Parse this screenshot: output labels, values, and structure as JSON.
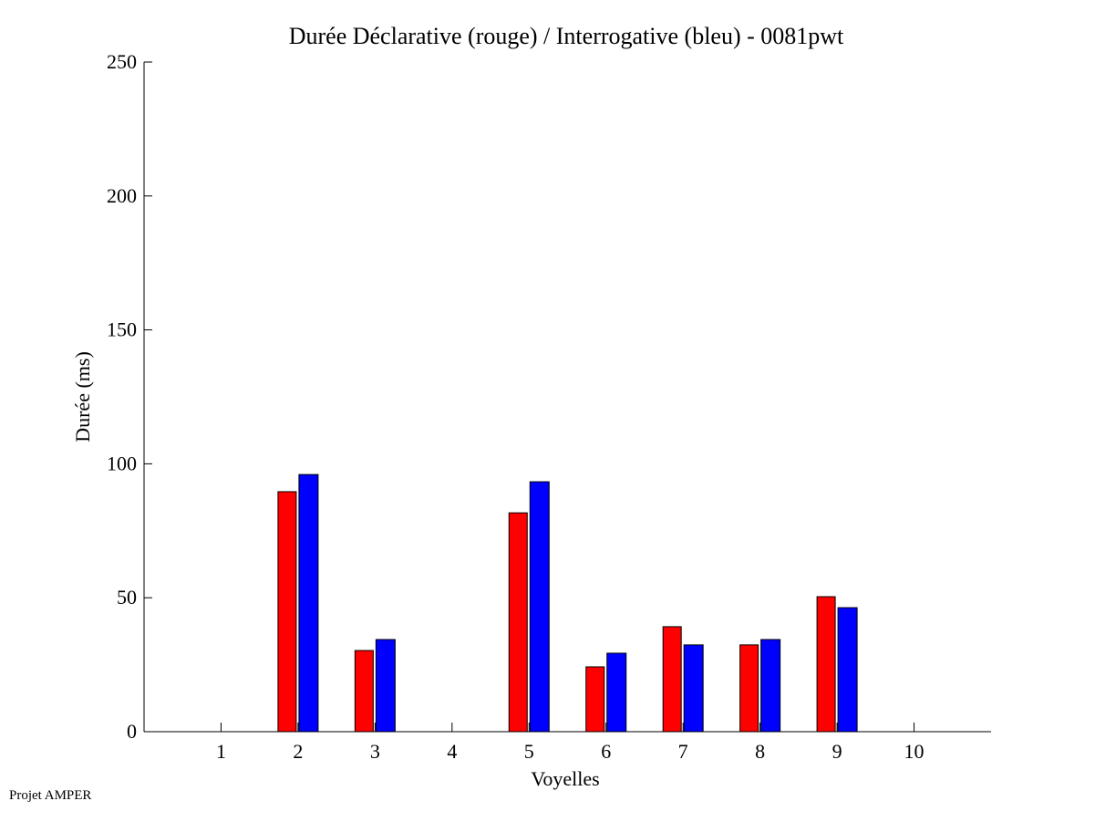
{
  "chart_data": {
    "type": "bar",
    "title": "Durée Déclarative (rouge) / Interrogative (bleu) - 0081pwt",
    "xlabel": "Voyelles",
    "ylabel": "Durée (ms)",
    "categories": [
      1,
      2,
      3,
      4,
      5,
      6,
      7,
      8,
      9,
      10
    ],
    "xlim": [
      0,
      11
    ],
    "ylim": [
      0,
      250
    ],
    "yticks": [
      0,
      50,
      100,
      150,
      200,
      250
    ],
    "grid": false,
    "series": [
      {
        "name": "Déclarative",
        "color": "#ff0000",
        "values": [
          0,
          89.6,
          30.3,
          0,
          81.7,
          24.2,
          39.2,
          32.4,
          50.4,
          0
        ]
      },
      {
        "name": "Interrogative",
        "color": "#0000ff",
        "values": [
          0,
          96.0,
          34.4,
          0,
          93.3,
          29.3,
          32.4,
          34.4,
          46.3,
          0
        ]
      }
    ]
  },
  "footer": "Projet AMPER"
}
